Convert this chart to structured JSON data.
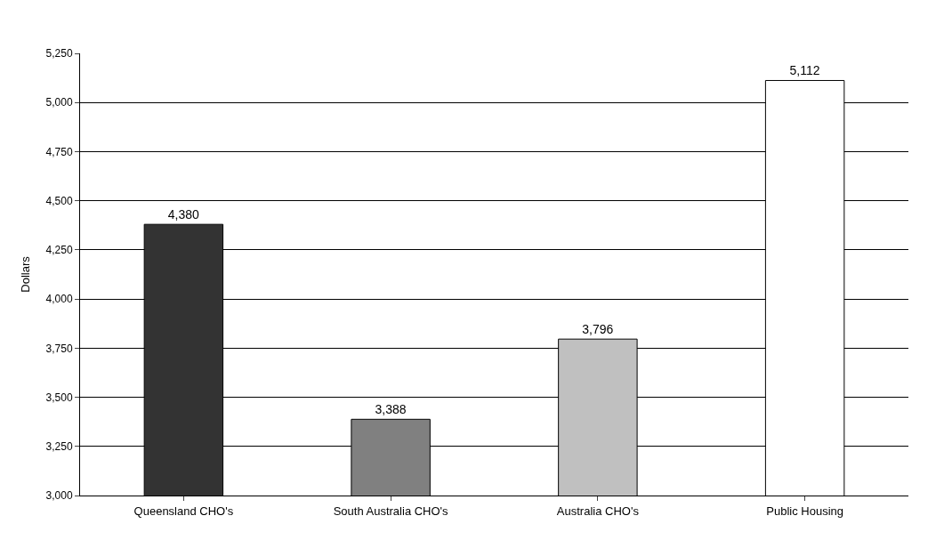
{
  "chart_data": {
    "type": "bar",
    "ylabel": "Dollars",
    "categories": [
      "Queensland CHO's",
      "South Australia CHO's",
      "Australia CHO's",
      "Public Housing"
    ],
    "values": [
      4380,
      3388,
      3796,
      5112
    ],
    "colors": [
      "#333333",
      "#808080",
      "#c0c0c0",
      "#ffffff"
    ],
    "value_labels": [
      "4,380",
      "3,388",
      "3,796",
      "5,112"
    ],
    "ylim": [
      3000,
      5250
    ],
    "yticks": [
      {
        "value": 3000,
        "label": "3,000"
      },
      {
        "value": 3250,
        "label": "3,250"
      },
      {
        "value": 3500,
        "label": "3,500"
      },
      {
        "value": 3750,
        "label": "3,750"
      },
      {
        "value": 4000,
        "label": "4,000"
      },
      {
        "value": 4250,
        "label": "4,250"
      },
      {
        "value": 4500,
        "label": "4,500"
      },
      {
        "value": 4750,
        "label": "4,750"
      },
      {
        "value": 5000,
        "label": "5,000"
      },
      {
        "value": 5250,
        "label": "5,250"
      }
    ],
    "grid": "y"
  }
}
